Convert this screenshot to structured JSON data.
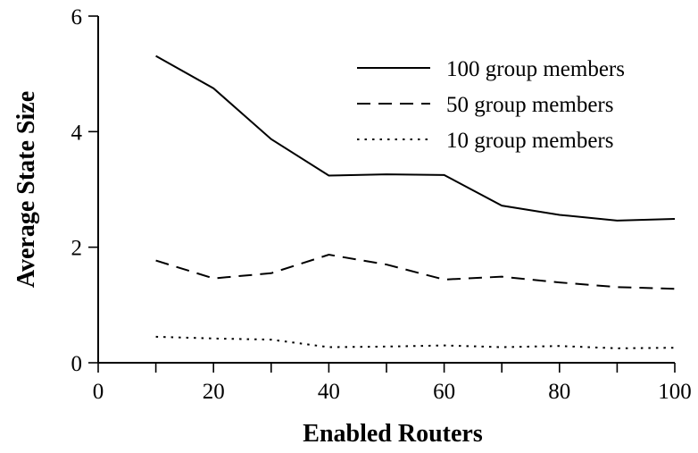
{
  "chart_data": {
    "type": "line",
    "title": "",
    "xlabel": "Enabled Routers",
    "ylabel": "Average State Size",
    "xlim": [
      0,
      100
    ],
    "ylim": [
      0,
      6
    ],
    "xticks": [
      0,
      10,
      20,
      30,
      40,
      50,
      60,
      70,
      80,
      90,
      100
    ],
    "xtick_labels": [
      "0",
      "20",
      "40",
      "60",
      "80",
      "100"
    ],
    "xtick_label_values": [
      0,
      20,
      40,
      60,
      80,
      100
    ],
    "yticks": [
      0,
      2,
      4,
      6
    ],
    "ytick_labels": [
      "0",
      "2",
      "4",
      "6"
    ],
    "grid": false,
    "legend_position": "top-right",
    "x": [
      10,
      20,
      30,
      40,
      50,
      60,
      70,
      80,
      90,
      100
    ],
    "series": [
      {
        "name": "100 group members",
        "style": "solid",
        "values": [
          5.31,
          4.75,
          3.87,
          3.24,
          3.26,
          3.25,
          2.72,
          2.56,
          2.46,
          2.49
        ]
      },
      {
        "name": "50 group members",
        "style": "dashed",
        "values": [
          1.77,
          1.46,
          1.55,
          1.87,
          1.7,
          1.44,
          1.49,
          1.39,
          1.31,
          1.28
        ]
      },
      {
        "name": "10 group members",
        "style": "dotted",
        "values": [
          0.45,
          0.42,
          0.4,
          0.27,
          0.28,
          0.3,
          0.27,
          0.29,
          0.25,
          0.26
        ]
      }
    ],
    "line_color": "#000000"
  }
}
